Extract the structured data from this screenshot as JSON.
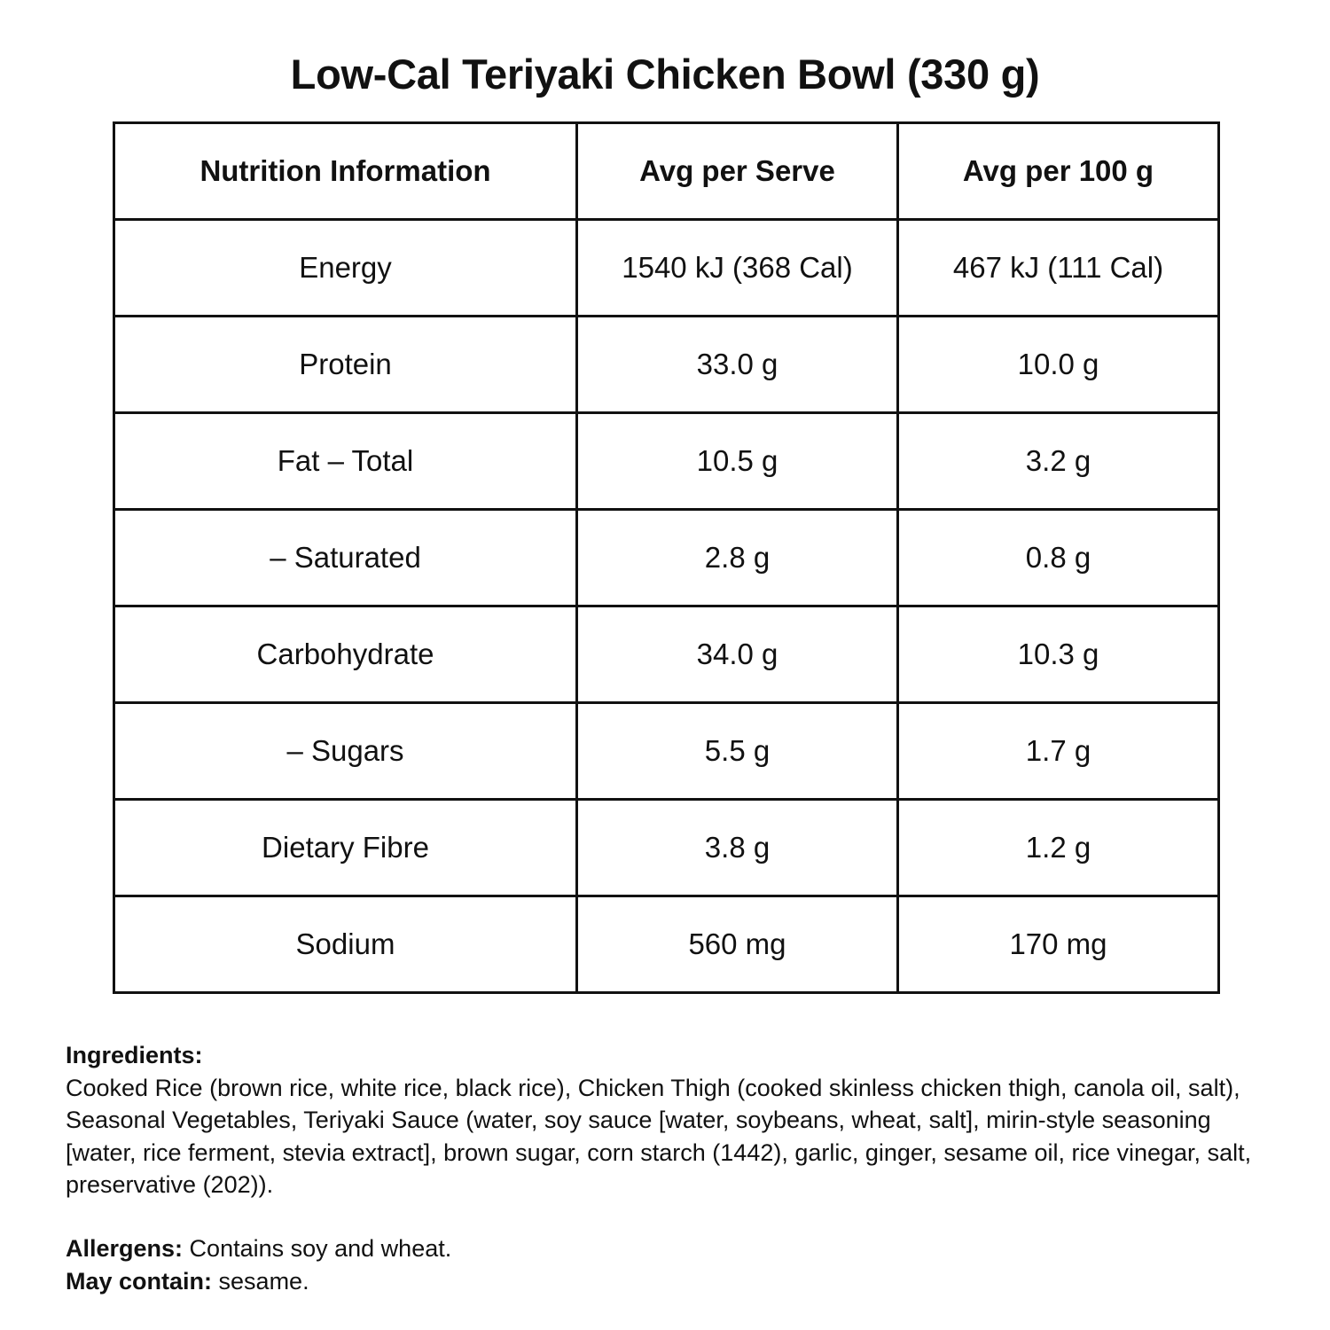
{
  "title": "Low-Cal Teriyaki Chicken Bowl (330 g)",
  "table": {
    "headers": [
      "Nutrition Information",
      "Avg per Serve",
      "Avg per 100 g"
    ],
    "rows": [
      [
        "Energy",
        "1540 kJ (368 Cal)",
        "467 kJ (111 Cal)"
      ],
      [
        "Protein",
        "33.0 g",
        "10.0 g"
      ],
      [
        "Fat – Total",
        "10.5 g",
        "3.2 g"
      ],
      [
        "– Saturated",
        "2.8 g",
        "0.8 g"
      ],
      [
        "Carbohydrate",
        "34.0 g",
        "10.3 g"
      ],
      [
        "– Sugars",
        "5.5 g",
        "1.7 g"
      ],
      [
        "Dietary Fibre",
        "3.8 g",
        "1.2 g"
      ],
      [
        "Sodium",
        "560 mg",
        "170 mg"
      ]
    ]
  },
  "ingredients": {
    "heading": "Ingredients:",
    "lines": [
      "Cooked Rice (brown rice, white rice, black rice), Chicken Thigh (cooked skinless chicken thigh, canola oil, salt),",
      "Seasonal Vegetables, Teriyaki Sauce (water, soy sauce [water, soybeans, wheat, salt], mirin-style seasoning",
      "[water, rice ferment, stevia extract], brown sugar, corn starch (1442), garlic, ginger, sesame oil, rice vinegar, salt,",
      "preservative (202))."
    ]
  },
  "allergens": {
    "label": "Allergens:",
    "text": " Contains soy and wheat."
  },
  "may_contain": {
    "label": "May contain:",
    "text": " sesame."
  }
}
